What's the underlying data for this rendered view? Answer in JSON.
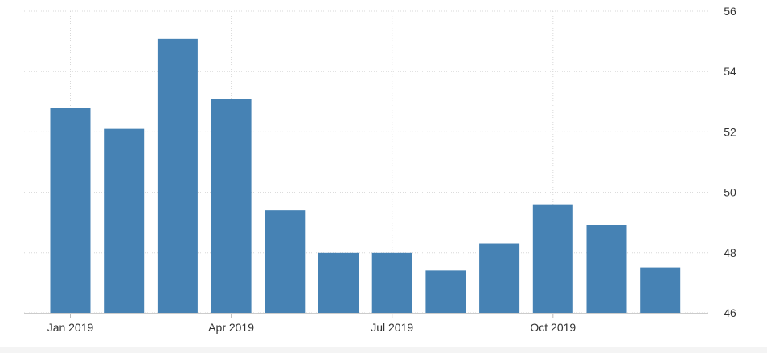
{
  "chart_data": {
    "type": "bar",
    "title": "",
    "xlabel": "",
    "ylabel": "",
    "categories": [
      "2019-01",
      "2019-02",
      "2019-03",
      "2019-04",
      "2019-05",
      "2019-06",
      "2019-07",
      "2019-08",
      "2019-09",
      "2019-10",
      "2019-11",
      "2019-12"
    ],
    "values": [
      52.8,
      52.1,
      55.1,
      53.1,
      49.4,
      48.0,
      48.0,
      47.4,
      48.3,
      49.6,
      48.9,
      47.5
    ],
    "ylim": [
      46,
      56
    ],
    "y_ticks": [
      "56",
      "54",
      "52",
      "50",
      "48",
      "46"
    ],
    "x_tick_labels": [
      {
        "label": "Jan 2019",
        "category": "2019-01"
      },
      {
        "label": "Apr 2019",
        "category": "2019-04"
      },
      {
        "label": "Jul 2019",
        "category": "2019-07"
      },
      {
        "label": "Oct 2019",
        "category": "2019-10"
      }
    ],
    "y_axis_side": "right",
    "grid": true,
    "legend": "none",
    "bar_color": "#4682b4",
    "grid_color": "#d8d8d8"
  }
}
